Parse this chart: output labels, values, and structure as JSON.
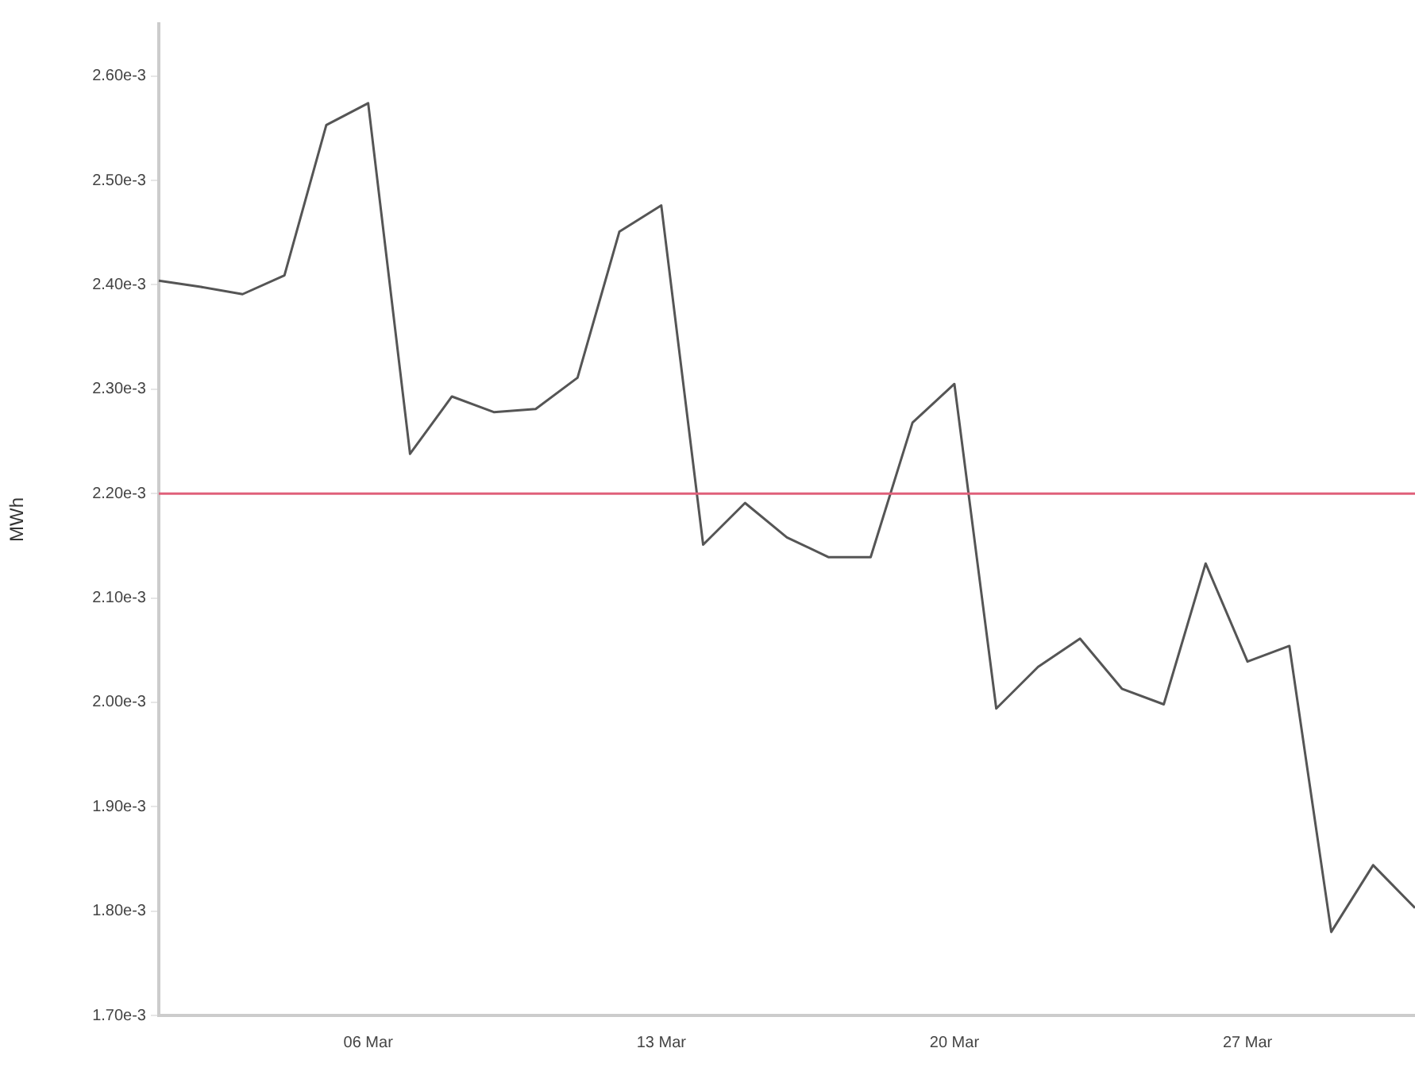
{
  "chart_data": {
    "type": "line",
    "ylabel": "MWh",
    "x": [
      "--03-01",
      "--03-02",
      "--03-03",
      "--03-04",
      "--03-05",
      "--03-06",
      "--03-07",
      "--03-08",
      "--03-09",
      "--03-10",
      "--03-11",
      "--03-12",
      "--03-13",
      "--03-14",
      "--03-15",
      "--03-16",
      "--03-17",
      "--03-18",
      "--03-19",
      "--03-20",
      "--03-21",
      "--03-22",
      "--03-23",
      "--03-24",
      "--03-25",
      "--03-26",
      "--03-27",
      "--03-28",
      "--03-29",
      "--03-30",
      "--03-31"
    ],
    "series": [
      {
        "color": "#555555",
        "values": [
          0.002404,
          0.002398,
          0.002391,
          0.002409,
          0.002553,
          0.002574,
          0.002238,
          0.002293,
          0.002278,
          0.002281,
          0.002311,
          0.002451,
          0.002476,
          0.002151,
          0.002191,
          0.002158,
          0.002139,
          0.002139,
          0.002268,
          0.002305,
          0.001994,
          0.002034,
          0.002061,
          0.002013,
          0.001998,
          0.002133,
          0.002039,
          0.002054,
          0.00178,
          0.001844,
          0.001803
        ]
      }
    ],
    "xlim": [
      "--03-01",
      "--03-31"
    ],
    "xticks": [
      {
        "value": "--03-06",
        "label": "06 Mar"
      },
      {
        "value": "--03-13",
        "label": "13 Mar"
      },
      {
        "value": "--03-20",
        "label": "20 Mar"
      },
      {
        "value": "--03-27",
        "label": "27 Mar"
      }
    ],
    "ylim": [
      0.0017,
      0.00265
    ],
    "yticks": [
      {
        "value": 0.0017,
        "label": "1.70e-3"
      },
      {
        "value": 0.0018,
        "label": "1.80e-3"
      },
      {
        "value": 0.0019,
        "label": "1.90e-3"
      },
      {
        "value": 0.002,
        "label": "2.00e-3"
      },
      {
        "value": 0.0021,
        "label": "2.10e-3"
      },
      {
        "value": 0.0022,
        "label": "2.20e-3"
      },
      {
        "value": 0.0023,
        "label": "2.30e-3"
      },
      {
        "value": 0.0024,
        "label": "2.40e-3"
      },
      {
        "value": 0.0025,
        "label": "2.50e-3"
      },
      {
        "value": 0.0026,
        "label": "2.60e-3"
      }
    ],
    "ref_lines": [
      {
        "axis": "y",
        "value": 0.0022,
        "color": "#e0607a"
      }
    ],
    "grid": false,
    "legend": false,
    "marker": "none",
    "line_style": "solid"
  }
}
